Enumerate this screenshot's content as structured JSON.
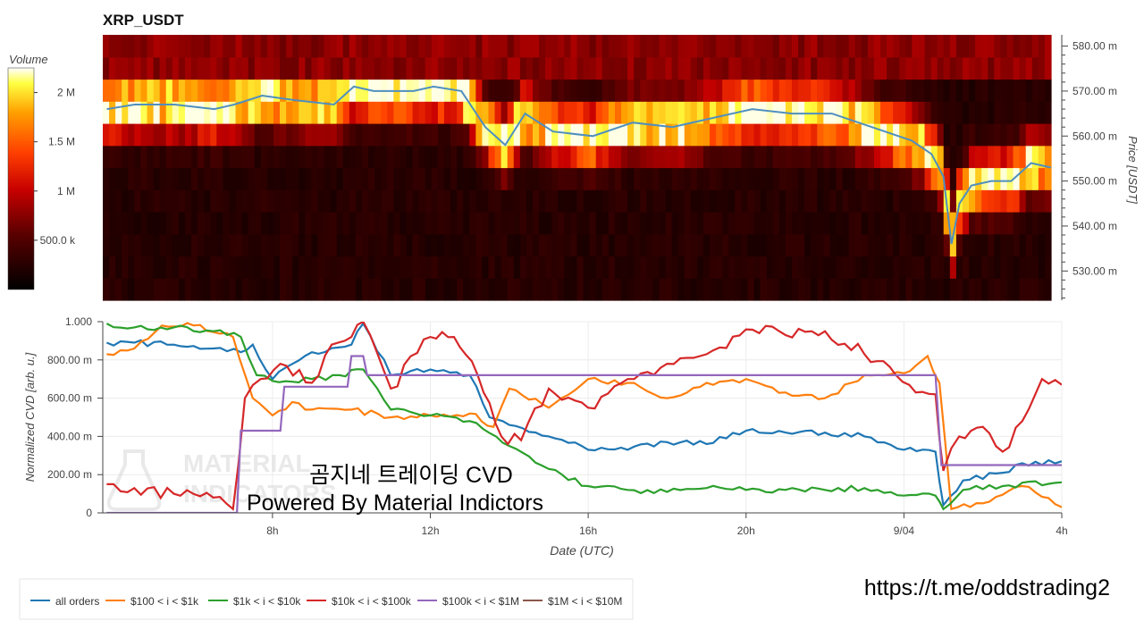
{
  "title": "XRP_USDT",
  "watermark": {
    "logo_text_1": "MATERIAL",
    "logo_text_2": "INDICATORS",
    "overlay_line_1": "곰지네 트레이딩 CVD",
    "overlay_line_2": "Powered By Material Indictors"
  },
  "link": "https://t.me/oddstrading2",
  "colors": {
    "all_orders": "#1f77b4",
    "i100_1k": "#ff7f0e",
    "i1k_10k": "#2ca02c",
    "i10k_100k": "#d62728",
    "i100k_1M": "#9467bd",
    "i1M_10M": "#8c564b",
    "price": "#4f8fbf"
  },
  "chart_data": [
    {
      "type": "heatmap",
      "title": "XRP_USDT",
      "colorbar": {
        "label": "Volume",
        "ticks": [
          "2 M",
          "1.5 M",
          "1 M",
          "500.0 k"
        ],
        "tick_values": [
          2000000,
          1500000,
          1000000,
          500000
        ],
        "range": [
          0,
          2250000
        ]
      },
      "ylabel": "Price [USDT]",
      "yticks": [
        "580.00 m",
        "570.00 m",
        "560.00 m",
        "550.00 m",
        "540.00 m",
        "530.00 m"
      ],
      "ytick_values": [
        0.58,
        0.57,
        0.56,
        0.55,
        0.54,
        0.53
      ],
      "ylim": [
        0.5235,
        0.5825
      ],
      "x_range_hours": [
        3.7,
        27.5
      ],
      "price_line": {
        "x": [
          3.8,
          4.5,
          5.5,
          6.5,
          7.0,
          7.7,
          8.5,
          9.5,
          10.0,
          10.5,
          11.5,
          12.0,
          12.7,
          13.3,
          13.8,
          14.3,
          15.0,
          16.0,
          17.0,
          18.0,
          19.0,
          20.0,
          21.0,
          22.0,
          23.0,
          24.0,
          24.5,
          24.8,
          25.0,
          25.2,
          25.5,
          26.0,
          26.5,
          27.0,
          27.5
        ],
        "y": [
          0.566,
          0.567,
          0.567,
          0.566,
          0.567,
          0.569,
          0.568,
          0.567,
          0.571,
          0.57,
          0.57,
          0.571,
          0.57,
          0.562,
          0.558,
          0.565,
          0.561,
          0.56,
          0.563,
          0.562,
          0.564,
          0.566,
          0.565,
          0.565,
          0.562,
          0.559,
          0.556,
          0.551,
          0.536,
          0.545,
          0.549,
          0.55,
          0.55,
          0.554,
          0.553
        ]
      }
    },
    {
      "type": "line",
      "xlabel": "Date (UTC)",
      "ylabel": "Normalized CVD [arb. u.]",
      "xticks": [
        "8h",
        "12h",
        "16h",
        "20h",
        "9/04",
        "4h"
      ],
      "xtick_values": [
        8,
        12,
        16,
        20,
        24,
        28
      ],
      "yticks": [
        "1.000",
        "800.00 m",
        "600.00 m",
        "400.00 m",
        "200.00 m",
        "0"
      ],
      "ytick_values": [
        1.0,
        0.8,
        0.6,
        0.4,
        0.2,
        0.0
      ],
      "ylim": [
        0,
        1
      ],
      "xlim": [
        3.7,
        28
      ],
      "legend_position": "bottom",
      "series": [
        {
          "name": "all orders",
          "x": [
            3.8,
            4.5,
            5.5,
            6.5,
            7.2,
            7.5,
            8.0,
            9.0,
            10.0,
            10.3,
            11.0,
            12.0,
            13.0,
            13.5,
            14.0,
            15.0,
            16.0,
            17.0,
            18.0,
            19.0,
            20.0,
            21.0,
            22.0,
            23.0,
            24.0,
            24.8,
            25.0,
            25.5,
            26.5,
            27.0,
            28.0
          ],
          "y": [
            0.89,
            0.89,
            0.88,
            0.86,
            0.84,
            0.88,
            0.7,
            0.84,
            0.88,
            0.99,
            0.72,
            0.75,
            0.72,
            0.5,
            0.46,
            0.4,
            0.33,
            0.33,
            0.37,
            0.36,
            0.43,
            0.42,
            0.42,
            0.4,
            0.33,
            0.32,
            0.04,
            0.17,
            0.21,
            0.26,
            0.27
          ]
        },
        {
          "name": "$100 < i < $1k",
          "x": [
            3.8,
            4.5,
            5.2,
            6.0,
            7.0,
            7.5,
            8.0,
            8.5,
            9.0,
            10.0,
            11.0,
            12.0,
            13.0,
            13.6,
            14.0,
            15.0,
            16.0,
            17.0,
            18.0,
            19.0,
            20.0,
            21.0,
            22.0,
            23.0,
            24.0,
            24.6,
            24.9,
            25.2,
            26.0,
            27.0,
            28.0
          ],
          "y": [
            0.83,
            0.86,
            0.98,
            0.98,
            0.92,
            0.6,
            0.51,
            0.58,
            0.54,
            0.54,
            0.5,
            0.51,
            0.52,
            0.45,
            0.65,
            0.55,
            0.7,
            0.68,
            0.6,
            0.68,
            0.7,
            0.63,
            0.6,
            0.72,
            0.73,
            0.82,
            0.68,
            0.02,
            0.05,
            0.14,
            0.03
          ]
        },
        {
          "name": "$1k < i < $10k",
          "x": [
            3.8,
            4.5,
            5.5,
            6.5,
            7.2,
            7.6,
            8.0,
            9.0,
            9.7,
            10.3,
            11.0,
            12.0,
            13.0,
            14.0,
            15.0,
            16.0,
            17.0,
            18.0,
            19.0,
            20.0,
            21.0,
            22.0,
            23.0,
            24.0,
            24.8,
            25.0,
            25.5,
            26.5,
            28.0
          ],
          "y": [
            0.99,
            0.97,
            0.97,
            0.95,
            0.92,
            0.72,
            0.69,
            0.7,
            0.72,
            0.75,
            0.54,
            0.51,
            0.48,
            0.35,
            0.23,
            0.14,
            0.12,
            0.11,
            0.13,
            0.12,
            0.12,
            0.12,
            0.13,
            0.09,
            0.09,
            0.02,
            0.12,
            0.14,
            0.16
          ]
        },
        {
          "name": "$10k < i < $100k",
          "x": [
            3.8,
            4.5,
            5.5,
            6.5,
            7.0,
            7.3,
            7.7,
            8.2,
            9.0,
            9.5,
            10.0,
            10.3,
            11.0,
            12.0,
            12.6,
            13.2,
            13.8,
            14.3,
            15.0,
            16.0,
            17.0,
            18.0,
            19.0,
            20.0,
            21.0,
            22.0,
            23.0,
            23.8,
            24.3,
            24.8,
            25.0,
            25.4,
            26.0,
            26.5,
            27.0,
            27.5,
            28.0
          ],
          "y": [
            0.15,
            0.13,
            0.1,
            0.08,
            0.02,
            0.6,
            0.7,
            0.78,
            0.68,
            0.88,
            0.92,
            1.0,
            0.65,
            0.92,
            0.92,
            0.72,
            0.4,
            0.38,
            0.65,
            0.55,
            0.7,
            0.78,
            0.83,
            0.96,
            0.93,
            0.95,
            0.83,
            0.72,
            0.63,
            0.62,
            0.22,
            0.4,
            0.45,
            0.32,
            0.48,
            0.7,
            0.67
          ]
        },
        {
          "name": "$100k < i < $1M",
          "x": [
            3.8,
            6.9,
            7.1,
            7.2,
            8.2,
            8.3,
            9.9,
            10.0,
            10.3,
            10.4,
            12.0,
            13.0,
            24.8,
            24.95,
            28.0
          ],
          "y": [
            0.0,
            0.0,
            0.0,
            0.43,
            0.43,
            0.66,
            0.66,
            0.82,
            0.82,
            0.72,
            0.72,
            0.72,
            0.72,
            0.25,
            0.25
          ]
        },
        {
          "name": "$1M < i < $10M",
          "x": [],
          "y": []
        }
      ]
    }
  ]
}
